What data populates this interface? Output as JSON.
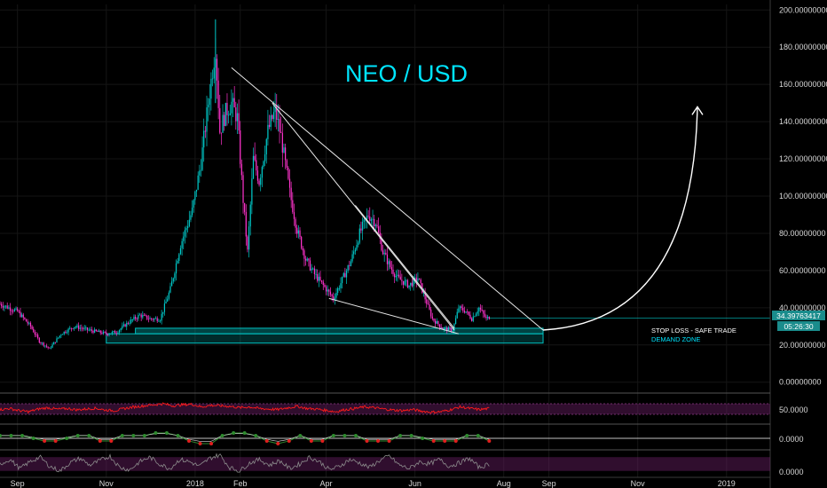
{
  "chart_data": {
    "type": "candlestick",
    "title": "NEO / USD",
    "colors": {
      "background": "#000000",
      "up": "#00c8c8",
      "down": "#ff33cc",
      "title": "#00e5ff",
      "zone": "#00bfbf",
      "price_badge": "#1a8c8c",
      "rsi_line": "#ff1a1a",
      "rsi_band": "#6a1f66",
      "stoch": "#8c8c8c",
      "macd_up": "#2e8b2e",
      "macd_down": "#e01e1e"
    },
    "y_axis": {
      "min": -3,
      "max": 203,
      "ticks": [
        "200.00000000",
        "180.00000000",
        "160.00000000",
        "140.00000000",
        "120.00000000",
        "100.00000000",
        "80.00000000",
        "60.00000000",
        "40.00000000",
        "20.00000000",
        "0.00000000"
      ],
      "tick_values": [
        200,
        180,
        160,
        140,
        120,
        100,
        80,
        60,
        40,
        20,
        0
      ]
    },
    "x_axis": {
      "labels": [
        "Sep",
        "Nov",
        "2018",
        "Feb",
        "Apr",
        "Jun",
        "Aug",
        "Sep",
        "Nov",
        "2019"
      ],
      "label_dates": [
        "2017-09-01",
        "2017-11-01",
        "2018-01-01",
        "2018-02-01",
        "2018-04-01",
        "2018-06-01",
        "2018-08-01",
        "2018-09-01",
        "2018-11-01",
        "2019-01-01"
      ],
      "start": "2017-08-20",
      "end": "2019-01-31"
    },
    "price_badge": {
      "value": "34.39763417",
      "countdown": "05:26:30"
    },
    "zones": [
      {
        "label": "STOP LOSS - SAFE TRADE",
        "from": 26,
        "to": 29,
        "start": "2017-11-21",
        "end": "2018-08-28"
      },
      {
        "label": "DEMAND ZONE",
        "from": 21,
        "to": 26,
        "start": "2017-11-01",
        "end": "2018-08-28"
      }
    ],
    "close_series": [
      [
        "2017-08-20",
        42
      ],
      [
        "2017-09-01",
        38
      ],
      [
        "2017-09-10",
        30
      ],
      [
        "2017-09-16",
        22
      ],
      [
        "2017-09-23",
        18
      ],
      [
        "2017-10-01",
        26
      ],
      [
        "2017-10-10",
        30
      ],
      [
        "2017-10-20",
        28
      ],
      [
        "2017-11-01",
        26
      ],
      [
        "2017-11-08",
        27
      ],
      [
        "2017-11-16",
        32
      ],
      [
        "2017-11-24",
        36
      ],
      [
        "2017-12-01",
        34
      ],
      [
        "2017-12-08",
        34
      ],
      [
        "2017-12-15",
        50
      ],
      [
        "2017-12-22",
        74
      ],
      [
        "2017-12-30",
        92
      ],
      [
        "2018-01-05",
        118
      ],
      [
        "2018-01-10",
        150
      ],
      [
        "2018-01-15",
        180
      ],
      [
        "2018-01-18",
        135
      ],
      [
        "2018-01-22",
        145
      ],
      [
        "2018-01-26",
        150
      ],
      [
        "2018-01-30",
        142
      ],
      [
        "2018-02-03",
        98
      ],
      [
        "2018-02-06",
        70
      ],
      [
        "2018-02-10",
        120
      ],
      [
        "2018-02-14",
        108
      ],
      [
        "2018-02-20",
        135
      ],
      [
        "2018-02-25",
        146
      ],
      [
        "2018-03-01",
        132
      ],
      [
        "2018-03-07",
        102
      ],
      [
        "2018-03-12",
        82
      ],
      [
        "2018-03-18",
        66
      ],
      [
        "2018-03-24",
        58
      ],
      [
        "2018-04-01",
        50
      ],
      [
        "2018-04-06",
        45
      ],
      [
        "2018-04-12",
        55
      ],
      [
        "2018-04-18",
        65
      ],
      [
        "2018-04-24",
        80
      ],
      [
        "2018-04-30",
        90
      ],
      [
        "2018-05-05",
        86
      ],
      [
        "2018-05-10",
        70
      ],
      [
        "2018-05-15",
        62
      ],
      [
        "2018-05-20",
        56
      ],
      [
        "2018-05-28",
        52
      ],
      [
        "2018-06-03",
        56
      ],
      [
        "2018-06-08",
        45
      ],
      [
        "2018-06-13",
        34
      ],
      [
        "2018-06-20",
        29
      ],
      [
        "2018-06-27",
        28
      ],
      [
        "2018-07-01",
        40
      ],
      [
        "2018-07-06",
        38
      ],
      [
        "2018-07-10",
        34
      ],
      [
        "2018-07-15",
        40
      ],
      [
        "2018-07-20",
        34
      ],
      [
        "2018-07-22",
        35
      ]
    ],
    "trendlines": [
      {
        "from": [
          "2018-01-26",
          169
        ],
        "to": [
          "2018-08-28",
          28
        ]
      },
      {
        "from": [
          "2018-02-23",
          150
        ],
        "to": [
          "2018-06-28",
          28
        ]
      },
      {
        "from": [
          "2018-04-03",
          45
        ],
        "to": [
          "2018-07-01",
          26
        ]
      },
      {
        "from": [
          "2018-04-21",
          95
        ],
        "to": [
          "2018-06-28",
          29
        ]
      }
    ],
    "projection": {
      "from": [
        "2018-08-28",
        28
      ],
      "to": [
        "2018-12-12",
        148
      ]
    },
    "rsi": {
      "tick": "50.0000",
      "band_top": 70,
      "band_bottom": 30,
      "series": [
        48,
        52,
        44,
        40,
        50,
        55,
        49,
        52,
        47,
        50,
        53,
        46,
        44,
        52,
        58,
        62,
        66,
        70,
        62,
        66,
        68,
        58,
        64,
        62,
        60,
        55,
        58,
        52,
        50,
        48,
        55,
        60,
        52,
        50,
        45,
        40,
        48,
        52,
        58,
        55,
        50,
        46,
        44,
        48,
        42,
        38,
        40,
        48,
        58,
        52,
        48,
        52
      ]
    },
    "macd": {
      "tick": "0.0000",
      "bars": [
        1,
        1,
        1,
        0,
        -1,
        -1,
        0,
        1,
        1,
        -1,
        -1,
        1,
        1,
        1,
        2,
        2,
        1,
        -1,
        -2,
        -2,
        1,
        2,
        2,
        1,
        -1,
        -2,
        -1,
        1,
        -1,
        -1,
        1,
        1,
        1,
        -1,
        -1,
        -1,
        1,
        1,
        0,
        -1,
        -1,
        -1,
        1,
        1,
        -1
      ]
    },
    "stoch": {
      "tick": "0.0000",
      "series": [
        50,
        70,
        30,
        60,
        80,
        40,
        20,
        55,
        75,
        45,
        65,
        85,
        35,
        25,
        60,
        80,
        50,
        30,
        70,
        60,
        40,
        75,
        90,
        35,
        20,
        55,
        70,
        45,
        65,
        30,
        50,
        80,
        60,
        25,
        40,
        70,
        55,
        35,
        65,
        85,
        45,
        30,
        60,
        50,
        70,
        40,
        55,
        75,
        35,
        50
      ]
    }
  }
}
